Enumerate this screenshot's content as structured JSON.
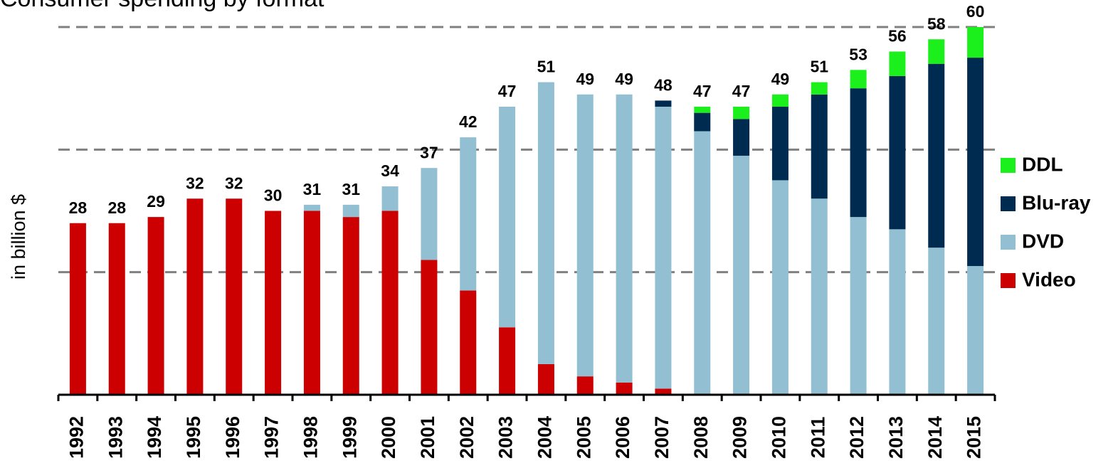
{
  "chart_data": {
    "type": "stacked_bar",
    "title": "Consumer spending by format",
    "y_label": "in billion $",
    "categories": [
      "1992",
      "1993",
      "1994",
      "1995",
      "1996",
      "1997",
      "1998",
      "1999",
      "2000",
      "2001",
      "2002",
      "2003",
      "2004",
      "2005",
      "2006",
      "2007",
      "2008",
      "2009",
      "2010",
      "2011",
      "2012",
      "2013",
      "2014",
      "2015"
    ],
    "series": [
      {
        "name": "Video",
        "color": "#cc0000",
        "values": [
          28,
          28,
          29,
          32,
          32,
          30,
          30,
          29,
          30,
          22,
          17,
          11,
          5,
          3,
          2,
          1,
          0,
          0,
          0,
          0,
          0,
          0,
          0,
          0
        ]
      },
      {
        "name": "DVD",
        "color": "#93bfd3",
        "values": [
          0,
          0,
          0,
          0,
          0,
          0,
          1,
          2,
          4,
          15,
          25,
          36,
          46,
          46,
          47,
          46,
          43,
          39,
          35,
          32,
          29,
          27,
          24,
          21
        ]
      },
      {
        "name": "Blu-ray",
        "color": "#002b50",
        "values": [
          0,
          0,
          0,
          0,
          0,
          0,
          0,
          0,
          0,
          0,
          0,
          0,
          0,
          0,
          0,
          1,
          3,
          6,
          12,
          17,
          21,
          25,
          30,
          34
        ]
      },
      {
        "name": "DDL",
        "color": "#1cf01c",
        "values": [
          0,
          0,
          0,
          0,
          0,
          0,
          0,
          0,
          0,
          0,
          0,
          0,
          0,
          0,
          0,
          0,
          1,
          2,
          2,
          2,
          3,
          4,
          4,
          5
        ]
      }
    ],
    "totals": [
      28,
      28,
      29,
      32,
      32,
      30,
      31,
      31,
      34,
      37,
      42,
      47,
      51,
      49,
      49,
      48,
      47,
      47,
      49,
      51,
      53,
      56,
      58,
      60
    ],
    "ylim": [
      0,
      60
    ],
    "yticks": [
      0,
      20,
      40,
      60
    ],
    "grid": true,
    "legend": "right"
  }
}
